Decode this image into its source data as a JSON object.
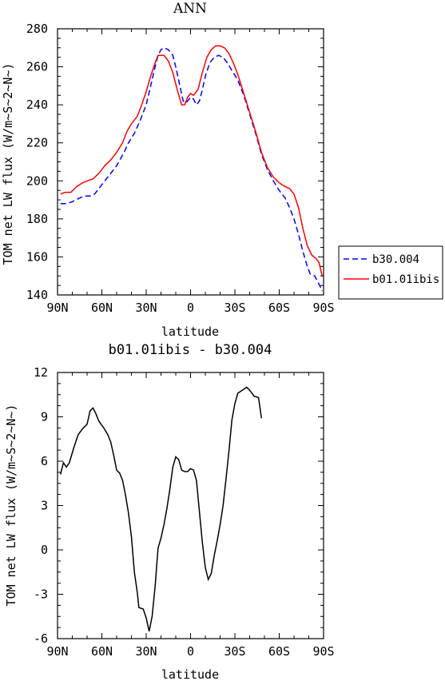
{
  "chart_data": [
    {
      "type": "line",
      "title": "ANN",
      "xlabel": "latitude",
      "ylabel": "TOM net LW flux (W/m~S~2~N~)",
      "xlim": [
        90,
        -90
      ],
      "ylim": [
        140,
        280
      ],
      "xticks": [
        90,
        60,
        30,
        0,
        -30,
        -60,
        -90
      ],
      "xtick_labels": [
        "90N",
        "60N",
        "30N",
        "0",
        "30S",
        "60S",
        "90S"
      ],
      "yticks": [
        140,
        160,
        180,
        200,
        220,
        240,
        260,
        280
      ],
      "ytick_labels": [
        "140",
        "160",
        "180",
        "200",
        "220",
        "240",
        "260",
        "280"
      ],
      "legend_position": "right",
      "series": [
        {
          "name": "b30.004",
          "color": "#0000ff",
          "dash": "dashed",
          "points": [
            [
              88,
              188
            ],
            [
              84,
              188
            ],
            [
              80,
              189
            ],
            [
              75,
              191
            ],
            [
              72,
              192
            ],
            [
              68,
              192
            ],
            [
              65,
              193
            ],
            [
              62,
              196
            ],
            [
              58,
              200
            ],
            [
              55,
              203
            ],
            [
              50,
              208
            ],
            [
              45,
              215
            ],
            [
              42,
              220
            ],
            [
              38,
              225
            ],
            [
              34,
              232
            ],
            [
              30,
              240
            ],
            [
              27,
              250
            ],
            [
              24,
              260
            ],
            [
              22,
              266
            ],
            [
              20,
              269
            ],
            [
              18,
              270
            ],
            [
              15,
              269
            ],
            [
              12,
              266
            ],
            [
              10,
              260
            ],
            [
              7,
              249
            ],
            [
              5,
              242
            ],
            [
              3,
              241
            ],
            [
              0,
              244
            ],
            [
              -2,
              243
            ],
            [
              -4,
              240
            ],
            [
              -6,
              242
            ],
            [
              -8,
              248
            ],
            [
              -10,
              255
            ],
            [
              -13,
              262
            ],
            [
              -16,
              265
            ],
            [
              -19,
              266
            ],
            [
              -22,
              265
            ],
            [
              -25,
              262
            ],
            [
              -28,
              258
            ],
            [
              -32,
              253
            ],
            [
              -36,
              245
            ],
            [
              -40,
              235
            ],
            [
              -44,
              225
            ],
            [
              -48,
              214
            ],
            [
              -52,
              206
            ],
            [
              -56,
              200
            ],
            [
              -60,
              195
            ],
            [
              -64,
              191
            ],
            [
              -67,
              186
            ],
            [
              -70,
              180
            ],
            [
              -73,
              172
            ],
            [
              -76,
              163
            ],
            [
              -79,
              155
            ],
            [
              -81,
              151
            ],
            [
              -84,
              150
            ],
            [
              -86,
              147
            ],
            [
              -88,
              144
            ],
            [
              -89,
              142
            ]
          ]
        },
        {
          "name": "b01.01ibis",
          "color": "#ff0000",
          "dash": "solid",
          "points": [
            [
              88,
              193
            ],
            [
              85,
              194
            ],
            [
              81,
              194
            ],
            [
              77,
              197
            ],
            [
              73,
              199
            ],
            [
              70,
              200
            ],
            [
              66,
              201
            ],
            [
              62,
              204
            ],
            [
              58,
              208
            ],
            [
              54,
              211
            ],
            [
              50,
              215
            ],
            [
              46,
              220
            ],
            [
              43,
              226
            ],
            [
              40,
              230
            ],
            [
              36,
              234
            ],
            [
              33,
              240
            ],
            [
              30,
              247
            ],
            [
              27,
              255
            ],
            [
              24,
              262
            ],
            [
              22,
              266
            ],
            [
              20,
              266
            ],
            [
              18,
              266
            ],
            [
              15,
              263
            ],
            [
              12,
              257
            ],
            [
              9,
              248
            ],
            [
              6,
              240
            ],
            [
              4,
              240
            ],
            [
              2,
              244
            ],
            [
              0,
              246
            ],
            [
              -2,
              245
            ],
            [
              -5,
              248
            ],
            [
              -8,
              257
            ],
            [
              -11,
              265
            ],
            [
              -14,
              269
            ],
            [
              -17,
              271
            ],
            [
              -20,
              271
            ],
            [
              -23,
              270
            ],
            [
              -26,
              267
            ],
            [
              -29,
              262
            ],
            [
              -32,
              256
            ],
            [
              -36,
              246
            ],
            [
              -40,
              236
            ],
            [
              -44,
              226
            ],
            [
              -48,
              215
            ],
            [
              -52,
              207
            ],
            [
              -56,
              202
            ],
            [
              -60,
              199
            ],
            [
              -64,
              197
            ],
            [
              -67,
              196
            ],
            [
              -70,
              193
            ],
            [
              -73,
              186
            ],
            [
              -76,
              175
            ],
            [
              -79,
              166
            ],
            [
              -82,
              161
            ],
            [
              -85,
              159
            ],
            [
              -87,
              157
            ],
            [
              -89,
              150
            ]
          ]
        }
      ]
    },
    {
      "type": "line",
      "title": "b01.01ibis - b30.004",
      "xlabel": "latitude",
      "ylabel": "TOM net LW flux (W/m~S~2~N~)",
      "xlim": [
        90,
        -90
      ],
      "ylim": [
        -6,
        12
      ],
      "xticks": [
        90,
        60,
        30,
        0,
        -30,
        -60,
        -90
      ],
      "xtick_labels": [
        "90N",
        "60N",
        "30N",
        "0",
        "30S",
        "60S",
        "90S"
      ],
      "yticks": [
        -6,
        -3,
        0,
        3,
        6,
        9,
        12
      ],
      "ytick_labels": [
        "-6",
        "-3",
        "0",
        "3",
        "6",
        "9",
        "12"
      ],
      "series": [
        {
          "color": "#000000",
          "dash": "solid",
          "points": [
            [
              88,
              5.1
            ],
            [
              86,
              5.9
            ],
            [
              84,
              5.6
            ],
            [
              82,
              5.9
            ],
            [
              79,
              6.9
            ],
            [
              76,
              7.8
            ],
            [
              73,
              8.2
            ],
            [
              70,
              8.5
            ],
            [
              68,
              9.4
            ],
            [
              66,
              9.6
            ],
            [
              64,
              9.2
            ],
            [
              62,
              8.7
            ],
            [
              59,
              8.3
            ],
            [
              56,
              7.8
            ],
            [
              54,
              7.3
            ],
            [
              52,
              6.4
            ],
            [
              50,
              5.4
            ],
            [
              48,
              5.2
            ],
            [
              46,
              4.7
            ],
            [
              44,
              3.7
            ],
            [
              42,
              2.5
            ],
            [
              40,
              0.9
            ],
            [
              38,
              -1.5
            ],
            [
              36,
              -2.9
            ],
            [
              35,
              -3.9
            ],
            [
              32,
              -4.0
            ],
            [
              30,
              -4.6
            ],
            [
              28,
              -5.5
            ],
            [
              26,
              -4.5
            ],
            [
              24,
              -2.5
            ],
            [
              22,
              0.1
            ],
            [
              20,
              0.8
            ],
            [
              18,
              1.7
            ],
            [
              16,
              2.8
            ],
            [
              14,
              4.1
            ],
            [
              12,
              5.6
            ],
            [
              10,
              6.3
            ],
            [
              8,
              6.1
            ],
            [
              6,
              5.4
            ],
            [
              4,
              5.3
            ],
            [
              2,
              5.3
            ],
            [
              0,
              5.5
            ],
            [
              -2,
              5.4
            ],
            [
              -4,
              4.7
            ],
            [
              -6,
              2.6
            ],
            [
              -8,
              0.5
            ],
            [
              -10,
              -1.2
            ],
            [
              -12,
              -2.0
            ],
            [
              -14,
              -1.6
            ],
            [
              -16,
              -0.4
            ],
            [
              -18,
              0.6
            ],
            [
              -20,
              1.7
            ],
            [
              -22,
              3.0
            ],
            [
              -24,
              4.8
            ],
            [
              -26,
              6.7
            ],
            [
              -28,
              8.8
            ],
            [
              -30,
              9.9
            ],
            [
              -32,
              10.6
            ],
            [
              -35,
              10.8
            ],
            [
              -38,
              11.0
            ],
            [
              -40,
              10.8
            ],
            [
              -43,
              10.4
            ],
            [
              -46,
              10.3
            ],
            [
              -48,
              8.9
            ]
          ]
        }
      ]
    }
  ]
}
